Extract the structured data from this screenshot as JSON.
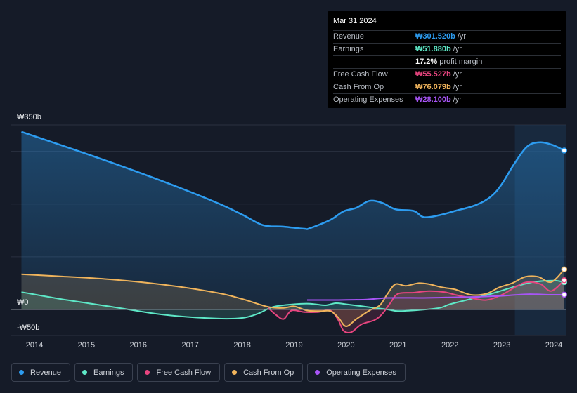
{
  "tooltip": {
    "date": "Mar 31 2024",
    "rows": [
      {
        "label": "Revenue",
        "value": "₩301.520b",
        "unit": "/yr",
        "color": "#2d9cf0"
      },
      {
        "label": "Earnings",
        "value": "₩51.880b",
        "unit": "/yr",
        "color": "#5ee8c7"
      },
      {
        "label": "",
        "value": "17.2%",
        "unit": "profit margin",
        "color": "#ffffff"
      },
      {
        "label": "Free Cash Flow",
        "value": "₩55.527b",
        "unit": "/yr",
        "color": "#e8457f"
      },
      {
        "label": "Cash From Op",
        "value": "₩76.079b",
        "unit": "/yr",
        "color": "#f0b45c"
      },
      {
        "label": "Operating Expenses",
        "value": "₩28.100b",
        "unit": "/yr",
        "color": "#a855f7"
      }
    ]
  },
  "legend": [
    {
      "label": "Revenue",
      "color": "#2d9cf0"
    },
    {
      "label": "Earnings",
      "color": "#5ee8c7"
    },
    {
      "label": "Free Cash Flow",
      "color": "#e8457f"
    },
    {
      "label": "Cash From Op",
      "color": "#f0b45c"
    },
    {
      "label": "Operating Expenses",
      "color": "#a855f7"
    }
  ],
  "chart_data": {
    "type": "area",
    "ylim": [
      -50,
      350
    ],
    "y_tick_labels": [
      {
        "value": 350,
        "label": "₩350b"
      },
      {
        "value": 0,
        "label": "₩0"
      },
      {
        "value": -50,
        "label": "-₩50b"
      }
    ],
    "x_tick_labels": [
      "2014",
      "2015",
      "2016",
      "2017",
      "2018",
      "2019",
      "2020",
      "2021",
      "2022",
      "2023",
      "2024"
    ],
    "xlim": [
      2013.6,
      2024.25
    ],
    "highlight_start": 2023.25,
    "series": [
      {
        "name": "Revenue",
        "color": "#2d9cf0",
        "fill": true,
        "points": [
          [
            2013.75,
            337
          ],
          [
            2014.5,
            312
          ],
          [
            2015.5,
            278
          ],
          [
            2016.5,
            242
          ],
          [
            2017.5,
            203
          ],
          [
            2018.0,
            180
          ],
          [
            2018.4,
            160
          ],
          [
            2018.8,
            157
          ],
          [
            2019.2,
            153
          ],
          [
            2019.3,
            154
          ],
          [
            2019.7,
            170
          ],
          [
            2019.95,
            186
          ],
          [
            2020.2,
            193
          ],
          [
            2020.45,
            206
          ],
          [
            2020.7,
            202
          ],
          [
            2020.95,
            190
          ],
          [
            2021.3,
            187
          ],
          [
            2021.5,
            175
          ],
          [
            2021.8,
            179
          ],
          [
            2022.1,
            187
          ],
          [
            2022.5,
            198
          ],
          [
            2022.8,
            215
          ],
          [
            2023.0,
            238
          ],
          [
            2023.25,
            278
          ],
          [
            2023.5,
            310
          ],
          [
            2023.75,
            317
          ],
          [
            2024.0,
            311
          ],
          [
            2024.2,
            301.5
          ]
        ]
      },
      {
        "name": "Earnings",
        "color": "#5ee8c7",
        "fill": true,
        "points": [
          [
            2013.75,
            33
          ],
          [
            2014.5,
            20
          ],
          [
            2015.5,
            5
          ],
          [
            2016.5,
            -10
          ],
          [
            2017.5,
            -17
          ],
          [
            2018.0,
            -16
          ],
          [
            2018.3,
            -8
          ],
          [
            2018.6,
            5
          ],
          [
            2019.0,
            10
          ],
          [
            2019.3,
            11
          ],
          [
            2019.6,
            8
          ],
          [
            2019.8,
            12
          ],
          [
            2020.0,
            10
          ],
          [
            2020.4,
            5
          ],
          [
            2020.8,
            0
          ],
          [
            2021.0,
            -3
          ],
          [
            2021.4,
            -1
          ],
          [
            2021.8,
            3
          ],
          [
            2022.0,
            10
          ],
          [
            2022.4,
            20
          ],
          [
            2022.8,
            30
          ],
          [
            2023.2,
            42
          ],
          [
            2023.6,
            52
          ],
          [
            2024.0,
            55
          ],
          [
            2024.2,
            51.9
          ]
        ]
      },
      {
        "name": "Free Cash Flow",
        "color": "#e8457f",
        "fill": true,
        "points": [
          [
            2018.5,
            3
          ],
          [
            2018.65,
            -10
          ],
          [
            2018.8,
            -18
          ],
          [
            2018.95,
            -2
          ],
          [
            2019.2,
            -5
          ],
          [
            2019.45,
            -5
          ],
          [
            2019.7,
            -2
          ],
          [
            2019.85,
            -20
          ],
          [
            2019.95,
            -40
          ],
          [
            2020.1,
            -43
          ],
          [
            2020.3,
            -28
          ],
          [
            2020.55,
            -20
          ],
          [
            2020.7,
            -8
          ],
          [
            2020.85,
            12
          ],
          [
            2021.0,
            30
          ],
          [
            2021.3,
            32
          ],
          [
            2021.6,
            35
          ],
          [
            2021.9,
            33
          ],
          [
            2022.1,
            28
          ],
          [
            2022.4,
            22
          ],
          [
            2022.7,
            18
          ],
          [
            2023.0,
            28
          ],
          [
            2023.3,
            45
          ],
          [
            2023.5,
            52
          ],
          [
            2023.75,
            48
          ],
          [
            2023.95,
            35
          ],
          [
            2024.2,
            55.5
          ]
        ]
      },
      {
        "name": "Cash From Op",
        "color": "#f0b45c",
        "fill": true,
        "points": [
          [
            2013.75,
            67
          ],
          [
            2014.5,
            63
          ],
          [
            2015.5,
            57
          ],
          [
            2016.5,
            47
          ],
          [
            2017.5,
            32
          ],
          [
            2018.0,
            20
          ],
          [
            2018.5,
            5
          ],
          [
            2018.8,
            3
          ],
          [
            2019.0,
            6
          ],
          [
            2019.25,
            -2
          ],
          [
            2019.5,
            -3
          ],
          [
            2019.7,
            -3
          ],
          [
            2019.85,
            -15
          ],
          [
            2020.0,
            -32
          ],
          [
            2020.2,
            -18
          ],
          [
            2020.45,
            -2
          ],
          [
            2020.65,
            8
          ],
          [
            2020.8,
            30
          ],
          [
            2020.95,
            48
          ],
          [
            2021.15,
            45
          ],
          [
            2021.4,
            50
          ],
          [
            2021.6,
            48
          ],
          [
            2021.85,
            42
          ],
          [
            2022.1,
            38
          ],
          [
            2022.4,
            28
          ],
          [
            2022.7,
            30
          ],
          [
            2022.95,
            42
          ],
          [
            2023.2,
            50
          ],
          [
            2023.45,
            62
          ],
          [
            2023.7,
            62
          ],
          [
            2023.95,
            52
          ],
          [
            2024.2,
            76
          ]
        ]
      },
      {
        "name": "Operating Expenses",
        "color": "#a855f7",
        "fill": false,
        "points": [
          [
            2019.25,
            18
          ],
          [
            2019.8,
            18
          ],
          [
            2020.4,
            19
          ],
          [
            2020.8,
            22
          ],
          [
            2021.5,
            22
          ],
          [
            2022.0,
            23
          ],
          [
            2022.5,
            24
          ],
          [
            2023.0,
            26
          ],
          [
            2023.5,
            29
          ],
          [
            2023.9,
            28
          ],
          [
            2024.2,
            28.1
          ]
        ]
      }
    ]
  }
}
